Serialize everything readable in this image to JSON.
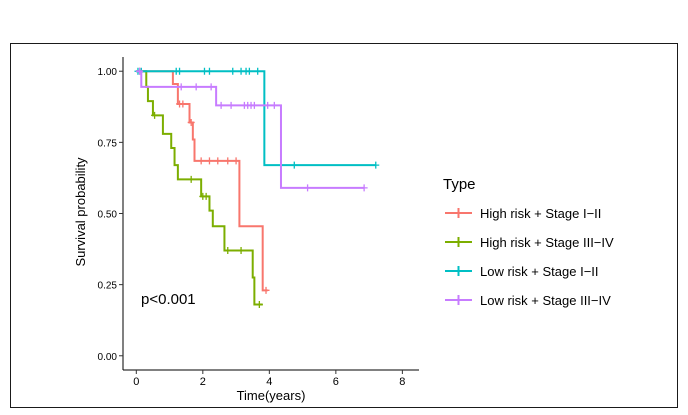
{
  "chart_data": {
    "type": "line",
    "subtype": "kaplan-meier",
    "xlabel": "Time(years)",
    "ylabel": "Survival probability",
    "xlim": [
      -0.4,
      8.5
    ],
    "ylim": [
      -0.05,
      1.05
    ],
    "xticks": [
      0,
      2,
      4,
      6,
      8
    ],
    "xtick_labels": [
      "0",
      "2",
      "4",
      "6",
      "8"
    ],
    "yticks": [
      0,
      0.25,
      0.5,
      0.75,
      1.0
    ],
    "ytick_labels": [
      "0.00",
      "0.25",
      "0.50",
      "0.75",
      "1.00"
    ],
    "annotation": "p<0.001",
    "legend": {
      "title": "Type",
      "position": "right"
    },
    "series": [
      {
        "name": "High risk + Stage I−II",
        "color": "#F8766D",
        "steps": [
          [
            0,
            1.0
          ],
          [
            1.1,
            0.955
          ],
          [
            1.25,
            0.885
          ],
          [
            1.6,
            0.82
          ],
          [
            1.7,
            0.76
          ],
          [
            1.75,
            0.685
          ],
          [
            3.1,
            0.455
          ],
          [
            3.8,
            0.23
          ]
        ],
        "end": 3.95,
        "censored": [
          [
            0.1,
            1.0
          ],
          [
            1.3,
            0.885
          ],
          [
            1.4,
            0.885
          ],
          [
            1.65,
            0.82
          ],
          [
            1.95,
            0.685
          ],
          [
            2.2,
            0.685
          ],
          [
            2.45,
            0.685
          ],
          [
            2.75,
            0.685
          ],
          [
            3.0,
            0.685
          ],
          [
            3.9,
            0.23
          ]
        ]
      },
      {
        "name": "High risk + Stage III−IV",
        "color": "#7CAE00",
        "steps": [
          [
            0,
            1.0
          ],
          [
            0.3,
            0.945
          ],
          [
            0.35,
            0.895
          ],
          [
            0.5,
            0.845
          ],
          [
            0.8,
            0.78
          ],
          [
            1.05,
            0.73
          ],
          [
            1.15,
            0.67
          ],
          [
            1.25,
            0.62
          ],
          [
            1.95,
            0.56
          ],
          [
            2.2,
            0.51
          ],
          [
            2.3,
            0.455
          ],
          [
            2.65,
            0.37
          ],
          [
            3.5,
            0.275
          ],
          [
            3.55,
            0.18
          ]
        ],
        "end": 3.8,
        "censored": [
          [
            0.55,
            0.845
          ],
          [
            1.65,
            0.62
          ],
          [
            2.0,
            0.56
          ],
          [
            2.1,
            0.56
          ],
          [
            2.75,
            0.37
          ],
          [
            3.15,
            0.37
          ],
          [
            3.7,
            0.18
          ]
        ]
      },
      {
        "name": "Low risk + Stage I−II",
        "color": "#00BFC4",
        "steps": [
          [
            0,
            1.0
          ],
          [
            3.85,
            0.67
          ]
        ],
        "end": 7.2,
        "censored": [
          [
            0.05,
            1.0
          ],
          [
            0.15,
            1.0
          ],
          [
            1.2,
            1.0
          ],
          [
            1.3,
            1.0
          ],
          [
            2.05,
            1.0
          ],
          [
            2.2,
            1.0
          ],
          [
            2.9,
            1.0
          ],
          [
            3.15,
            1.0
          ],
          [
            3.3,
            1.0
          ],
          [
            3.4,
            1.0
          ],
          [
            3.65,
            1.0
          ],
          [
            4.75,
            0.67
          ],
          [
            7.2,
            0.67
          ]
        ]
      },
      {
        "name": "Low risk + Stage III−IV",
        "color": "#C77CFF",
        "steps": [
          [
            0,
            1.0
          ],
          [
            0.15,
            0.945
          ],
          [
            2.4,
            0.88
          ],
          [
            4.35,
            0.59
          ]
        ],
        "end": 6.85,
        "censored": [
          [
            0.1,
            1.0
          ],
          [
            1.35,
            0.945
          ],
          [
            1.8,
            0.945
          ],
          [
            2.25,
            0.945
          ],
          [
            2.55,
            0.88
          ],
          [
            2.85,
            0.88
          ],
          [
            3.25,
            0.88
          ],
          [
            3.35,
            0.88
          ],
          [
            3.45,
            0.88
          ],
          [
            3.55,
            0.88
          ],
          [
            3.95,
            0.88
          ],
          [
            4.15,
            0.88
          ],
          [
            5.15,
            0.59
          ],
          [
            6.85,
            0.59
          ]
        ]
      }
    ]
  }
}
